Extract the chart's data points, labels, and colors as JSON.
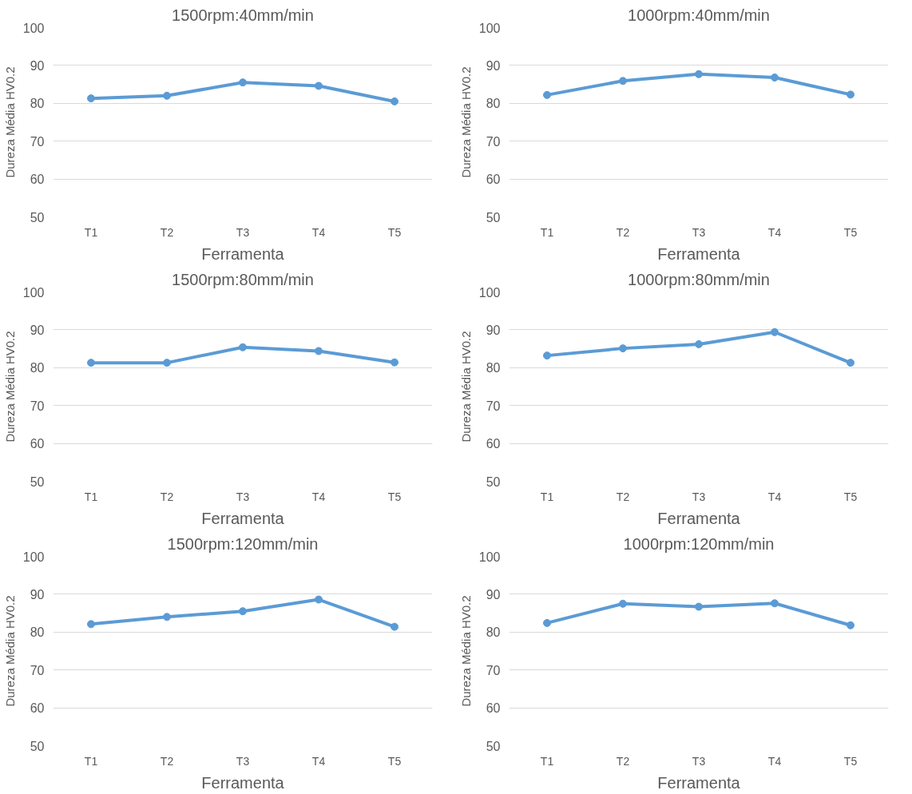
{
  "chart_data": [
    {
      "type": "line",
      "title": "1500rpm:40mm/min",
      "xlabel": "Ferramenta",
      "ylabel": "Dureza Média HV0.2",
      "categories": [
        "T1",
        "T2",
        "T3",
        "T4",
        "T5"
      ],
      "values": [
        81.3,
        82,
        85.5,
        84.6,
        80.5
      ],
      "color": "#5b9bd5",
      "ylim": [
        50,
        100
      ],
      "yticks": [
        50,
        60,
        70,
        80,
        90,
        100
      ],
      "grid": "y",
      "marker": "circle"
    },
    {
      "type": "line",
      "title": "1000rpm:40mm/min",
      "xlabel": "Ferramenta",
      "ylabel": "Dureza Média HV0.2",
      "categories": [
        "T1",
        "T2",
        "T3",
        "T4",
        "T5"
      ],
      "values": [
        82.2,
        85.9,
        87.7,
        86.8,
        82.3
      ],
      "color": "#5b9bd5",
      "ylim": [
        50,
        100
      ],
      "yticks": [
        50,
        60,
        70,
        80,
        90,
        100
      ],
      "grid": "y",
      "marker": "circle"
    },
    {
      "type": "line",
      "title": "1500rpm:80mm/min",
      "xlabel": "Ferramenta",
      "ylabel": "Dureza Média HV0.2",
      "categories": [
        "T1",
        "T2",
        "T3",
        "T4",
        "T5"
      ],
      "values": [
        81.3,
        81.3,
        85.4,
        84.4,
        81.4
      ],
      "color": "#5b9bd5",
      "ylim": [
        50,
        100
      ],
      "yticks": [
        50,
        60,
        70,
        80,
        90,
        100
      ],
      "grid": "y",
      "marker": "circle"
    },
    {
      "type": "line",
      "title": "1000rpm:80mm/min",
      "xlabel": "Ferramenta",
      "ylabel": "Dureza Média HV0.2",
      "categories": [
        "T1",
        "T2",
        "T3",
        "T4",
        "T5"
      ],
      "values": [
        83.2,
        85.1,
        86.2,
        89.4,
        81.3
      ],
      "color": "#5b9bd5",
      "ylim": [
        50,
        100
      ],
      "yticks": [
        50,
        60,
        70,
        80,
        90,
        100
      ],
      "grid": "y",
      "marker": "circle"
    },
    {
      "type": "line",
      "title": "1500rpm:120mm/min",
      "xlabel": "Ferramenta",
      "ylabel": "Dureza Média HV0.2",
      "categories": [
        "T1",
        "T2",
        "T3",
        "T4",
        "T5"
      ],
      "values": [
        82.1,
        84,
        85.5,
        88.6,
        81.4
      ],
      "color": "#5b9bd5",
      "ylim": [
        50,
        100
      ],
      "yticks": [
        50,
        60,
        70,
        80,
        90,
        100
      ],
      "grid": "y",
      "marker": "circle"
    },
    {
      "type": "line",
      "title": "1000rpm:120mm/min",
      "xlabel": "Ferramenta",
      "ylabel": "Dureza Média HV0.2",
      "categories": [
        "T1",
        "T2",
        "T3",
        "T4",
        "T5"
      ],
      "values": [
        82.4,
        87.5,
        86.7,
        87.6,
        81.8
      ],
      "color": "#5b9bd5",
      "ylim": [
        50,
        100
      ],
      "yticks": [
        50,
        60,
        70,
        80,
        90,
        100
      ],
      "grid": "y",
      "marker": "circle"
    }
  ]
}
